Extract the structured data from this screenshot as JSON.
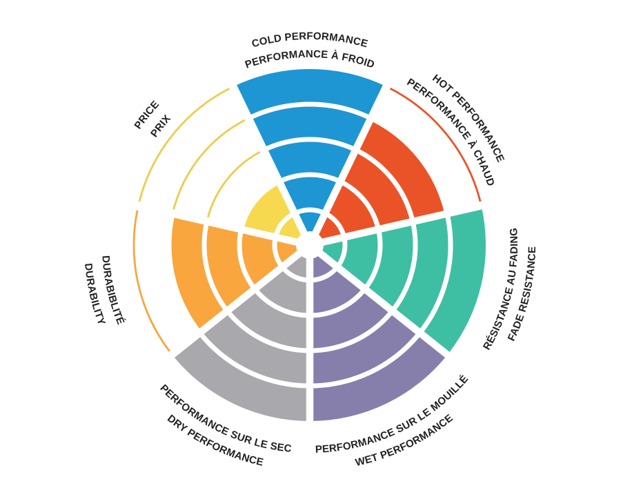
{
  "chart_data": {
    "type": "polar-area",
    "title": "",
    "rings": 5,
    "value_range": [
      0,
      5
    ],
    "direction": "clockwise",
    "start_category_angle_deg": 90,
    "categories": [
      "COLD PERFORMANCE / PERFORMANCE À FROID",
      "HOT PERFORMANCE / PERFORMANCE À CHAUD",
      "RÉSISTANCE AU FADING / FADE RESISTANCE",
      "PERFORMANCE SUR LE MOUILLÉ / WET PERFORMANCE",
      "PERFORMANCE SUR LE SEC / DRY PERFORMANCE",
      "DURABIBLITÉ / DURABILITY",
      "PRICE / PRIX"
    ],
    "values": [
      5,
      4,
      5,
      5,
      5,
      4,
      2
    ],
    "colors": [
      "#1E96D3",
      "#EA5328",
      "#3EBFA4",
      "#867FAC",
      "#A9A8AC",
      "#F9A63F",
      "#F6D94F"
    ],
    "unfilled_levels_shown_as": "thin colored arc outlines at missing ring boundaries",
    "grid": "white concentric ring dividers and white radial gaps",
    "legend_position": "none"
  },
  "wheel": {
    "background": "#FFFFFF",
    "text_color": "#231F20",
    "wedges": [
      {
        "id": "cold-performance",
        "lines": [
          "COLD PERFORMANCE",
          "PERFORMANCE À FROID"
        ],
        "value": 5,
        "color": "#1E96D3"
      },
      {
        "id": "hot-performance",
        "lines": [
          "HOT PERFORMANCE",
          "PERFORMANCE À CHAUD"
        ],
        "value": 4,
        "color": "#EA5328"
      },
      {
        "id": "fade-resistance",
        "lines": [
          "RÉSISTANCE AU FADING",
          "FADE RESISTANCE"
        ],
        "value": 5,
        "color": "#3EBFA4"
      },
      {
        "id": "wet-performance",
        "lines": [
          "PERFORMANCE SUR LE MOUILLÉ",
          "WET PERFORMANCE"
        ],
        "value": 5,
        "color": "#867FAC"
      },
      {
        "id": "dry-performance",
        "lines": [
          "PERFORMANCE SUR LE SEC",
          "DRY PERFORMANCE"
        ],
        "value": 5,
        "color": "#A9A8AC"
      },
      {
        "id": "durability",
        "lines": [
          "DURABIBLITÉ",
          "DURABILITY"
        ],
        "value": 4,
        "color": "#F9A63F"
      },
      {
        "id": "price",
        "lines": [
          "PRICE",
          "PRIX"
        ],
        "value": 2,
        "color": "#F6D94F",
        "arc_color": "#EFCB4E"
      }
    ]
  }
}
